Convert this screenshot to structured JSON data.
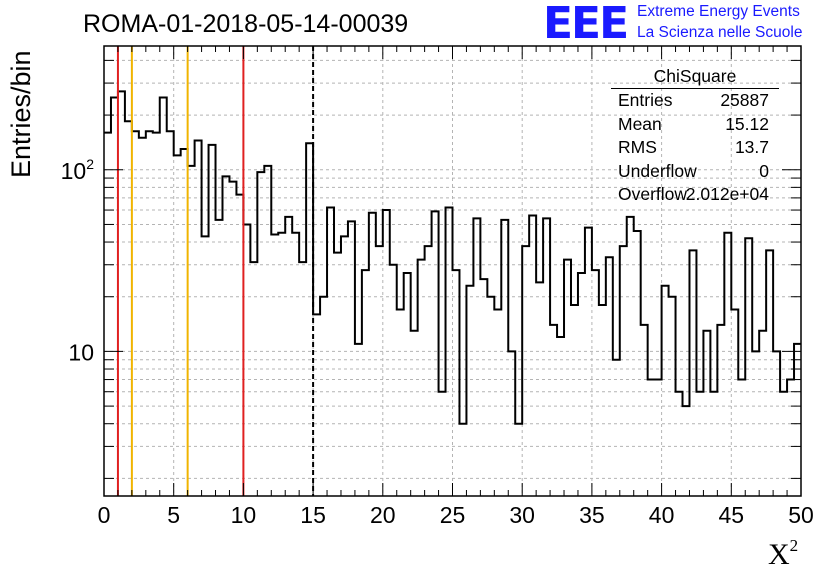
{
  "title": "ROMA-01-2018-05-14-00039",
  "logo": {
    "mark": "EEE",
    "line1": "Extreme Energy Events",
    "line2": "La Scienza nelle Scuole",
    "color": "#1a1aff"
  },
  "stats": {
    "title": "ChiSquare",
    "rows": [
      {
        "label": "Entries",
        "value": "25887"
      },
      {
        "label": "Mean",
        "value": "15.12"
      },
      {
        "label": "RMS",
        "value": "13.7"
      },
      {
        "label": "Underflow",
        "value": "0"
      },
      {
        "label": "Overflow",
        "value": "2.012e+04"
      }
    ]
  },
  "chart_data": {
    "type": "histogram",
    "xlabel": "X²",
    "ylabel": "Entries/bin",
    "xlim": [
      0,
      50
    ],
    "ylim": [
      1.6,
      480
    ],
    "yscale": "log",
    "bin_width": 0.5,
    "grid": true,
    "x_ticks": [
      "0",
      "5",
      "10",
      "15",
      "20",
      "25",
      "30",
      "35",
      "40",
      "45",
      "50"
    ],
    "y_ticks": [
      {
        "value": 10,
        "label": "10"
      },
      {
        "value": 100,
        "label": "10²"
      }
    ],
    "values": [
      160,
      250,
      270,
      185,
      163,
      150,
      163,
      160,
      250,
      163,
      120,
      130,
      105,
      145,
      43,
      137,
      53,
      92,
      86,
      73,
      50,
      31,
      97,
      105,
      44,
      45,
      55,
      45,
      31,
      140,
      16,
      20,
      62,
      35,
      43,
      52,
      11,
      28,
      58,
      38,
      60,
      30,
      17,
      27,
      13,
      32,
      38,
      59,
      6,
      62,
      28,
      4,
      23,
      54,
      25,
      20,
      17,
      53,
      10,
      4,
      38,
      56,
      24,
      54,
      14,
      12,
      32,
      18,
      27,
      48,
      28,
      18,
      33,
      9,
      38,
      55,
      46,
      14,
      7,
      7,
      23,
      20,
      6,
      5,
      36,
      6,
      13,
      6,
      14,
      45,
      17,
      7,
      42,
      10,
      13,
      36,
      10,
      6,
      7,
      11
    ],
    "vertical_lines": [
      {
        "x": 1,
        "color": "#e02020",
        "style": "solid"
      },
      {
        "x": 2,
        "color": "#f0b400",
        "style": "solid"
      },
      {
        "x": 6,
        "color": "#f0b400",
        "style": "solid"
      },
      {
        "x": 10,
        "color": "#e02020",
        "style": "solid"
      },
      {
        "x": 15,
        "color": "#000000",
        "style": "dashed"
      }
    ]
  }
}
